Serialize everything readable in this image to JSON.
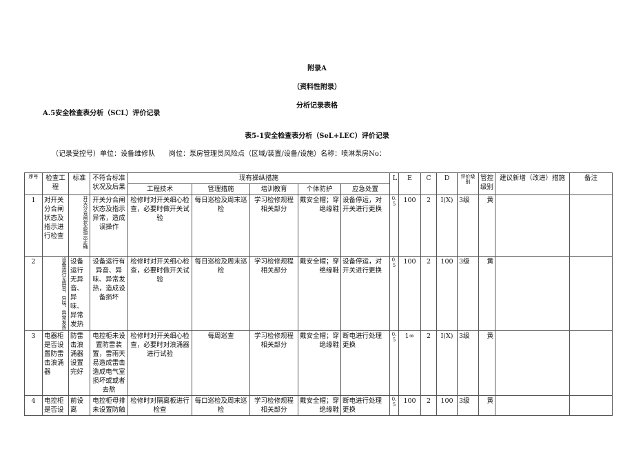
{
  "heading": {
    "appendix": "附录A",
    "note": "（资料性附录）",
    "title": "分析记录表格",
    "section": "A.5安全检查表分析（SCL）评价记录",
    "table_title": "表5-1安全检查表分析（SeL+LEC）评价记录",
    "info": "（记录受控号）单位：设备维修队　　岗位：泵房管理员风险点（区域/装置/设备/设施）名称：喷淋泵房No："
  },
  "headers": {
    "no": "序号",
    "item": "检查工程",
    "standard": "标准",
    "nonconform": "不符合标准状况及后果",
    "measures": "现有操纵措施",
    "eng": "工程技术",
    "mgmt": "管理措施",
    "train": "培训教育",
    "ppe": "个体防护",
    "emerg": "应急处置",
    "L": "L",
    "E": "E",
    "C": "C",
    "D": "D",
    "level": "评价级别",
    "ctrl": "管控级别",
    "suggest": "建议新增（改进）措施",
    "remark": "备注"
  },
  "rows": [
    {
      "no": "1",
      "item": "对开关分合闸状态及指示进行检查",
      "standard": "开关分合闸状态指示正确",
      "nonconform": "开关分合闸状态及指示异常，造成误操作",
      "eng": "检修时对开关细心检查，必要时做开关试验",
      "mgmt": "每日巡检及周末巡检",
      "train": "学习检修规程相关部分",
      "ppe": "戴安全帽；穿绝缘鞋",
      "emerg": "设备停运，对开关进行更换",
      "L": "0.5",
      "E": "100",
      "C": "2",
      "D": "I(X)",
      "level": "3级",
      "ctrl": "黄",
      "suggest": "",
      "remark": ""
    },
    {
      "no": "2",
      "item": "设备运行无异音、异味、异常发热",
      "standard": "设备运行无异音、异味、异常发热",
      "nonconform": "设备运行有异音、异味、异常发热，造成设备损坏",
      "eng": "检修时对开关细心检查，必要时做开关试验",
      "mgmt": "每日巡检及周末巡检",
      "train": "学习检修规程相关部分",
      "ppe": "戴安全帽；穿绝缘鞋",
      "emerg": "设备停运，对开关进行更换",
      "L": "0.5",
      "E": "100",
      "C": "2",
      "D": "100",
      "level": "3级",
      "ctrl": "黄",
      "suggest": "",
      "remark": ""
    },
    {
      "no": "3",
      "item": "电器柜是否设置防雷击浪涌器",
      "standard": "防雷击浪涌器设置完好",
      "nonconform": "电控柜未设置防雷装置，雷雨天易造成雷击造成电气室损坏或或者去熬",
      "eng": "检修时对开关细心检查，必要时对浪涌器进行试验",
      "mgmt": "每周巡查",
      "train": "学习检修规程相关部分",
      "ppe": "戴安全帽；穿绝缘鞋",
      "emerg": "断电进行处理更换",
      "L": "0.5",
      "E": "1∞",
      "C": "2",
      "D": "I(X)",
      "level": "3级",
      "ctrl": "黄",
      "suggest": "",
      "remark": ""
    },
    {
      "no": "4",
      "item": "电控柜是否设",
      "standard": "前设离",
      "nonconform": "电控柜母排未设置防触",
      "eng": "检修时对隔离板进行检查",
      "mgmt": "每口巡检及周末巡检",
      "train": "学习检修规程相关部分",
      "ppe": "戴安全帽；穿绝缘鞋",
      "emerg": "断电进行处理更换",
      "L": "0.5",
      "E": "100",
      "C": "2",
      "D": "100",
      "level": "3级",
      "ctrl": "黄",
      "suggest": "",
      "remark": ""
    }
  ]
}
